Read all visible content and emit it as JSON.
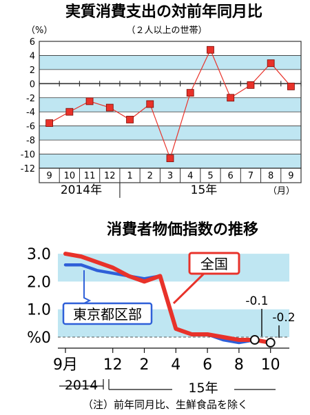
{
  "colors": {
    "background": "#ffffff",
    "band_light_blue": "#bfe6f2",
    "series_red": "#e8322a",
    "series_blue": "#2e5fd8",
    "text": "#111111",
    "grid": "#333333"
  },
  "chart_data": [
    {
      "type": "line",
      "title": "実質消費支出の対前年同月比",
      "subtitle": "（２人以上の世帯）",
      "ylabel": "（%）",
      "ylim": [
        -12,
        6
      ],
      "y_ticks": [
        "6",
        "4",
        "2",
        "0",
        "-2",
        "-4",
        "-6",
        "-8",
        "-10",
        "-12"
      ],
      "y_tick_values": [
        6,
        4,
        2,
        0,
        -2,
        -4,
        -6,
        -8,
        -10,
        -12
      ],
      "categories": [
        "9",
        "10",
        "11",
        "12",
        "1",
        "2",
        "3",
        "4",
        "5",
        "6",
        "7",
        "8",
        "9"
      ],
      "year_labels": [
        "2014年",
        "15年"
      ],
      "month_unit_label": "（月）",
      "series": [
        {
          "values": [
            -5.6,
            -4.0,
            -2.5,
            -3.4,
            -5.1,
            -2.9,
            -10.6,
            -1.3,
            4.8,
            -2.0,
            -0.2,
            2.9,
            -0.4
          ]
        }
      ],
      "grid": true,
      "shaded_bands": [
        [
          -12,
          -10
        ],
        [
          -8,
          -6
        ],
        [
          -4,
          -2
        ],
        [
          2,
          4
        ]
      ]
    },
    {
      "type": "line",
      "title": "消費者物価指数の推移",
      "ylim": [
        -0.5,
        3.5
      ],
      "y_ticks": [
        "3.0",
        "2.0",
        "1.0",
        "%0"
      ],
      "y_tick_values": [
        3.0,
        2.0,
        1.0,
        0.0
      ],
      "x_ticks": [
        "9月",
        "12",
        "2",
        "4",
        "6",
        "8",
        "10"
      ],
      "year_labels": [
        "2014",
        "15年"
      ],
      "series": [
        {
          "name": "全国",
          "x": [
            "2014-09",
            "2014-10",
            "2014-11",
            "2014-12",
            "2015-01",
            "2015-02",
            "2015-03",
            "2015-04",
            "2015-05",
            "2015-06",
            "2015-07",
            "2015-08",
            "2015-09",
            "2015-10"
          ],
          "values": [
            3.0,
            2.9,
            2.7,
            2.5,
            2.2,
            2.0,
            2.2,
            0.3,
            0.1,
            0.1,
            0.0,
            -0.1,
            -0.1,
            -0.2
          ]
        },
        {
          "name": "東京都区部",
          "x": [
            "2014-09",
            "2014-10",
            "2014-11",
            "2014-12",
            "2015-01",
            "2015-02",
            "2015-03",
            "2015-04",
            "2015-05",
            "2015-06",
            "2015-07",
            "2015-08",
            "2015-09",
            "2015-10"
          ],
          "values": [
            2.6,
            2.6,
            2.4,
            2.3,
            2.2,
            2.1,
            2.2,
            0.3,
            0.1,
            0.1,
            -0.1,
            -0.2,
            -0.1,
            -0.2
          ]
        }
      ],
      "annotations": [
        "-0.1",
        "-0.2"
      ],
      "note": "（注）前年同月比、生鮮食品を除く",
      "grid": false,
      "shaded_bands": [
        [
          0,
          1
        ],
        [
          2,
          3
        ]
      ]
    }
  ]
}
